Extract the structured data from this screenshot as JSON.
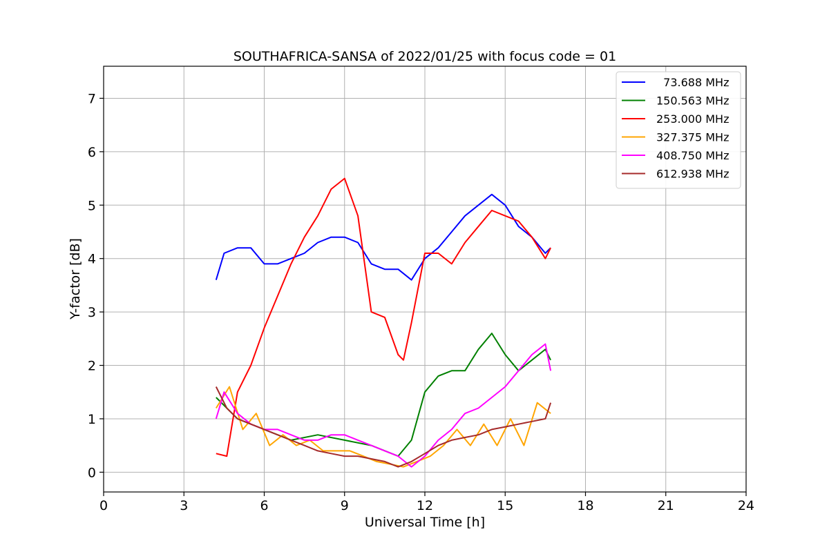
{
  "chart_data": {
    "type": "line",
    "title": "SOUTHAFRICA-SANSA of 2022/01/25 with focus code = 01",
    "xlabel": "Universal Time [h]",
    "ylabel": "Y-factor [dB]",
    "xlim": [
      0,
      24
    ],
    "ylim": [
      -0.37,
      7.6
    ],
    "xticks": [
      0,
      3,
      6,
      9,
      12,
      15,
      18,
      21,
      24
    ],
    "yticks": [
      0,
      1,
      2,
      3,
      4,
      5,
      6,
      7
    ],
    "grid": true,
    "legend_position": "top-right",
    "series": [
      {
        "name": "  73.688 MHz",
        "color": "#0000ff",
        "x": [
          4.2,
          4.5,
          5.0,
          5.5,
          6.0,
          6.5,
          7.0,
          7.5,
          8.0,
          8.5,
          9.0,
          9.5,
          10.0,
          10.5,
          11.0,
          11.5,
          12.0,
          12.5,
          13.0,
          13.5,
          14.0,
          14.5,
          15.0,
          15.5,
          16.0,
          16.5,
          16.7
        ],
        "y": [
          3.6,
          4.1,
          4.2,
          4.2,
          3.9,
          3.9,
          4.0,
          4.1,
          4.3,
          4.4,
          4.4,
          4.3,
          3.9,
          3.8,
          3.8,
          3.6,
          4.0,
          4.2,
          4.5,
          4.8,
          5.0,
          5.2,
          5.0,
          4.6,
          4.4,
          4.1,
          4.2
        ]
      },
      {
        "name": "150.563 MHz",
        "color": "#008000",
        "x": [
          4.2,
          5.0,
          6.0,
          7.0,
          8.0,
          9.0,
          10.0,
          11.0,
          11.5,
          12.0,
          12.5,
          13.0,
          13.5,
          14.0,
          14.5,
          15.0,
          15.5,
          16.0,
          16.5,
          16.7
        ],
        "y": [
          1.4,
          1.0,
          0.8,
          0.6,
          0.7,
          0.6,
          0.5,
          0.3,
          0.6,
          1.5,
          1.8,
          1.9,
          1.9,
          2.3,
          2.6,
          2.2,
          1.9,
          2.1,
          2.3,
          2.1
        ]
      },
      {
        "name": "253.000 MHz",
        "color": "#ff0000",
        "x": [
          4.2,
          4.6,
          5.0,
          5.5,
          6.0,
          6.5,
          7.0,
          7.5,
          8.0,
          8.5,
          9.0,
          9.5,
          10.0,
          10.5,
          11.0,
          11.2,
          11.5,
          12.0,
          12.5,
          13.0,
          13.5,
          14.0,
          14.5,
          15.0,
          15.5,
          16.0,
          16.5,
          16.7
        ],
        "y": [
          0.35,
          0.3,
          1.5,
          2.0,
          2.7,
          3.3,
          3.9,
          4.4,
          4.8,
          5.3,
          5.5,
          4.8,
          3.0,
          2.9,
          2.2,
          2.1,
          2.8,
          4.1,
          4.1,
          3.9,
          4.3,
          4.6,
          4.9,
          4.8,
          4.7,
          4.4,
          4.0,
          4.2
        ]
      },
      {
        "name": "327.375 MHz",
        "color": "#ffa500",
        "x": [
          4.2,
          4.7,
          5.2,
          5.7,
          6.2,
          6.7,
          7.2,
          7.7,
          8.2,
          8.7,
          9.2,
          9.7,
          10.2,
          10.7,
          11.2,
          11.7,
          12.2,
          12.7,
          13.2,
          13.7,
          14.2,
          14.7,
          15.2,
          15.7,
          16.2,
          16.7
        ],
        "y": [
          1.2,
          1.6,
          0.8,
          1.1,
          0.5,
          0.7,
          0.5,
          0.6,
          0.4,
          0.4,
          0.4,
          0.3,
          0.2,
          0.15,
          0.1,
          0.2,
          0.3,
          0.5,
          0.8,
          0.5,
          0.9,
          0.5,
          1.0,
          0.5,
          1.3,
          1.1
        ]
      },
      {
        "name": "408.750 MHz",
        "color": "#ff00ff",
        "x": [
          4.2,
          4.5,
          5.0,
          5.5,
          6.0,
          6.5,
          7.0,
          7.5,
          8.0,
          8.5,
          9.0,
          9.5,
          10.0,
          10.5,
          11.0,
          11.5,
          12.0,
          12.5,
          13.0,
          13.5,
          14.0,
          14.5,
          15.0,
          15.5,
          16.0,
          16.5,
          16.7
        ],
        "y": [
          1.0,
          1.5,
          1.1,
          0.9,
          0.8,
          0.8,
          0.7,
          0.6,
          0.6,
          0.7,
          0.7,
          0.6,
          0.5,
          0.4,
          0.3,
          0.1,
          0.3,
          0.6,
          0.8,
          1.1,
          1.2,
          1.4,
          1.6,
          1.9,
          2.2,
          2.4,
          1.9
        ]
      },
      {
        "name": "612.938 MHz",
        "color": "#a52a2a",
        "x": [
          4.2,
          4.6,
          5.0,
          5.5,
          6.0,
          6.5,
          7.0,
          7.5,
          8.0,
          8.5,
          9.0,
          9.5,
          10.0,
          10.5,
          11.0,
          11.5,
          12.0,
          12.5,
          13.0,
          13.5,
          14.0,
          14.5,
          15.0,
          15.5,
          16.0,
          16.5,
          16.7
        ],
        "y": [
          1.6,
          1.2,
          1.0,
          0.9,
          0.8,
          0.7,
          0.6,
          0.5,
          0.4,
          0.35,
          0.3,
          0.3,
          0.25,
          0.2,
          0.1,
          0.2,
          0.35,
          0.5,
          0.6,
          0.65,
          0.7,
          0.8,
          0.85,
          0.9,
          0.95,
          1.0,
          1.3
        ]
      }
    ]
  }
}
